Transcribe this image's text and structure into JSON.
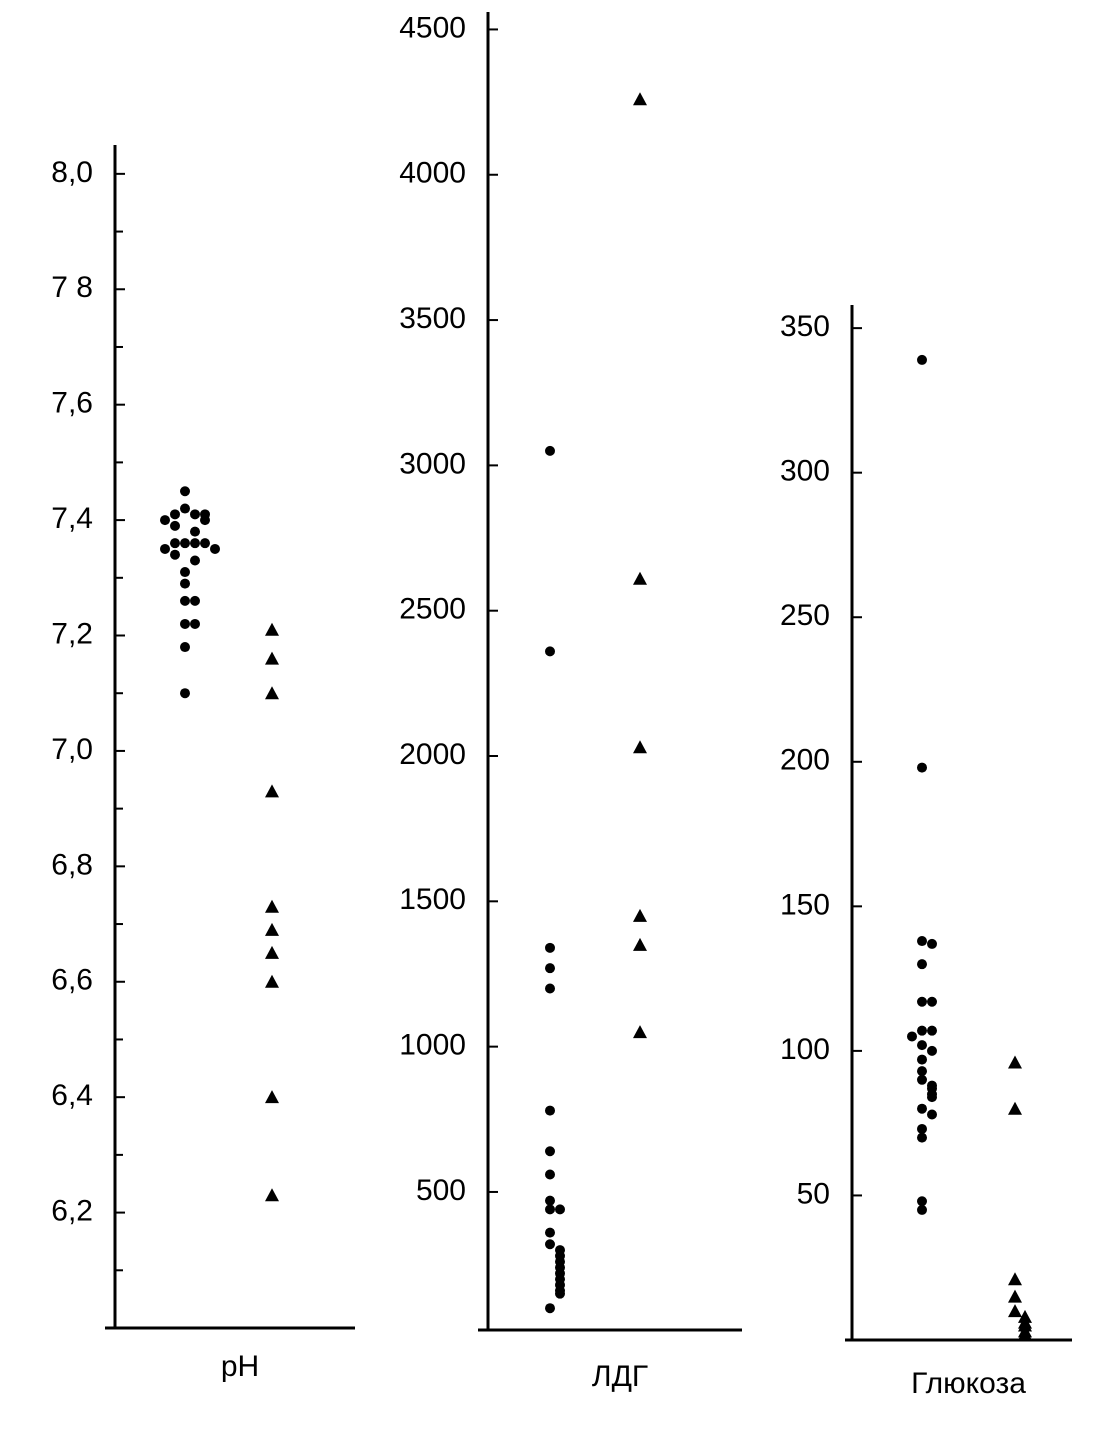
{
  "chart_data": [
    {
      "type": "strip",
      "x_label": "pH",
      "color": "#000000",
      "ylim": [
        6.0,
        8.05
      ],
      "yticks": [
        {
          "value": 8.0,
          "label": "8,0"
        },
        {
          "value": 7.8,
          "label": "7 8"
        },
        {
          "value": 7.6,
          "label": "7,6"
        },
        {
          "value": 7.4,
          "label": "7,4"
        },
        {
          "value": 7.2,
          "label": "7,2"
        },
        {
          "value": 7.0,
          "label": "7,0"
        },
        {
          "value": 6.8,
          "label": "6,8"
        },
        {
          "value": 6.6,
          "label": "6,6"
        },
        {
          "value": 6.4,
          "label": "6,4"
        },
        {
          "value": 6.2,
          "label": "6,2"
        }
      ],
      "minor_yticks": [
        7.9,
        7.7,
        7.5,
        7.3,
        7.1,
        6.9,
        6.7,
        6.5,
        6.3,
        6.1
      ],
      "series": [
        {
          "marker": "circle",
          "values": [
            7.45,
            7.42,
            7.41,
            7.41,
            7.41,
            7.4,
            7.4,
            7.39,
            7.38,
            7.36,
            7.36,
            7.36,
            7.36,
            7.35,
            7.35,
            7.34,
            7.33,
            7.31,
            7.29,
            7.26,
            7.26,
            7.22,
            7.22,
            7.18,
            7.1
          ]
        },
        {
          "marker": "triangle",
          "values": [
            7.21,
            7.16,
            7.1,
            6.93,
            6.73,
            6.69,
            6.65,
            6.6,
            6.4,
            6.23
          ]
        }
      ]
    },
    {
      "type": "strip",
      "x_label": "ЛДГ",
      "color": "#000000",
      "ylim": [
        25,
        4560
      ],
      "yticks": [
        4500,
        4000,
        3500,
        3000,
        2500,
        2000,
        1500,
        1000,
        500
      ],
      "series": [
        {
          "marker": "circle",
          "values": [
            3050,
            2360,
            1340,
            1270,
            1200,
            780,
            640,
            560,
            470,
            440,
            440,
            360,
            320,
            300,
            280,
            260,
            240,
            220,
            200,
            180,
            160,
            150,
            100
          ]
        },
        {
          "marker": "triangle",
          "values": [
            4260,
            2610,
            2030,
            1450,
            1350,
            1050
          ]
        }
      ]
    },
    {
      "type": "strip",
      "x_label": "Глюкоза",
      "color": "#000000",
      "ylim": [
        0,
        358
      ],
      "yticks": [
        350,
        300,
        250,
        200,
        150,
        100,
        50
      ],
      "series": [
        {
          "marker": "circle",
          "values": [
            339,
            198,
            138,
            137,
            130,
            117,
            117,
            107,
            107,
            105,
            102,
            100,
            97,
            93,
            90,
            88,
            87,
            85,
            84,
            80,
            78,
            73,
            70,
            48,
            45
          ]
        },
        {
          "marker": "triangle",
          "values": [
            96,
            80,
            21,
            15,
            10,
            8,
            6,
            5,
            3,
            2
          ]
        }
      ]
    }
  ]
}
